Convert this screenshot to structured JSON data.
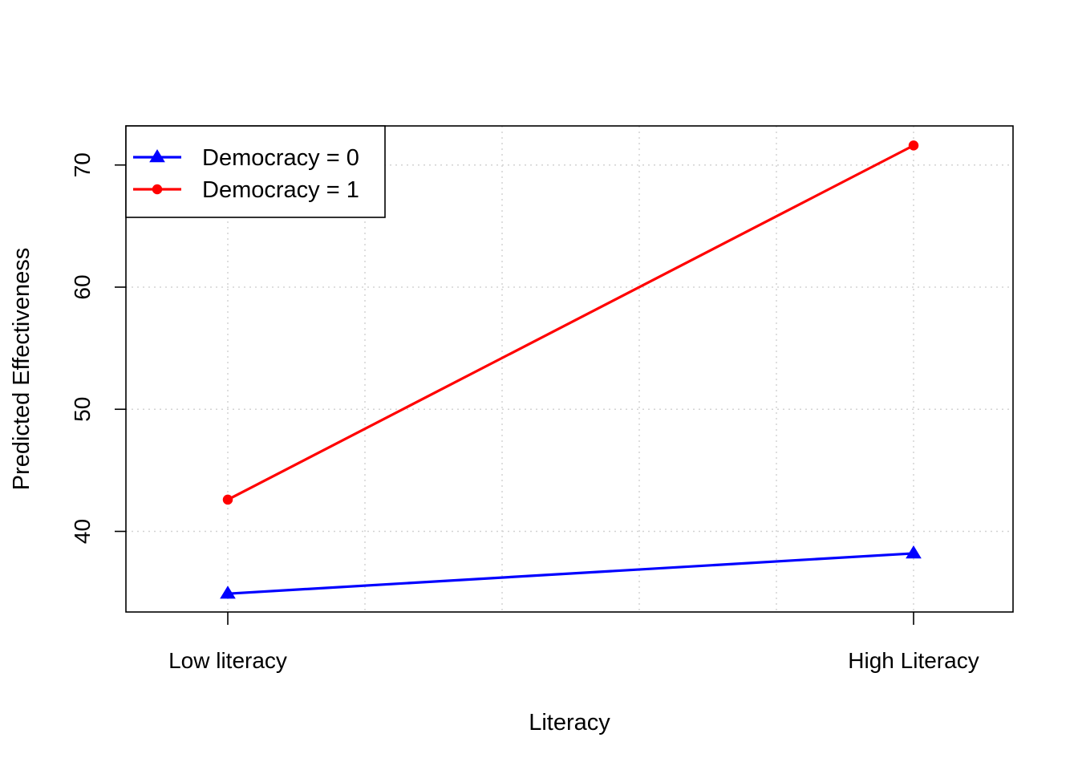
{
  "chart_data": {
    "type": "line",
    "categories": [
      "Low literacy",
      "High Literacy"
    ],
    "x_ticks_extra": [
      "",
      "",
      "",
      ""
    ],
    "series": [
      {
        "name": "Democracy = 0",
        "values": [
          34.9,
          38.2
        ],
        "color": "#0000ff",
        "marker": "triangle"
      },
      {
        "name": "Democracy = 1",
        "values": [
          42.6,
          71.6
        ],
        "color": "#ff0000",
        "marker": "circle"
      }
    ],
    "xlabel": "Literacy",
    "ylabel": "Predicted Effectiveness",
    "ylim": [
      33.4,
      73.2
    ],
    "yticks": [
      40,
      50,
      60,
      70
    ],
    "grid": true,
    "legend": "top-left"
  }
}
